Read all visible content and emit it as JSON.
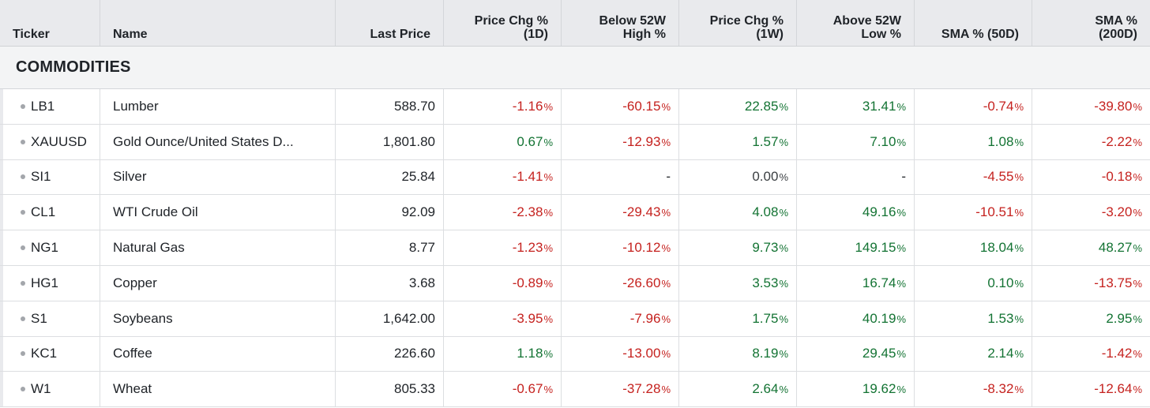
{
  "header": {
    "ticker": "Ticker",
    "name": "Name",
    "last_price": "Last Price",
    "chg_1d": "Price Chg %\n(1D)",
    "below_52w_high": "Below 52W\nHigh %",
    "chg_1w": "Price Chg %\n(1W)",
    "above_52w_low": "Above 52W\nLow %",
    "sma_50d": "SMA % (50D)",
    "sma_200d": "SMA %\n(200D)"
  },
  "section": {
    "title": "COMMODITIES"
  },
  "rows": [
    {
      "ticker": "LB1",
      "name": "Lumber",
      "price": "588.70",
      "chg_1d": {
        "v": "-1.16",
        "dir": "down"
      },
      "below_high": {
        "v": "-60.15",
        "dir": "down"
      },
      "chg_1w": {
        "v": "22.85",
        "dir": "up"
      },
      "above_low": {
        "v": "31.41",
        "dir": "up"
      },
      "sma50": {
        "v": "-0.74",
        "dir": "down"
      },
      "sma200": {
        "v": "-39.80",
        "dir": "down"
      }
    },
    {
      "ticker": "XAUUSD",
      "name": "Gold Ounce/United States D...",
      "price": "1,801.80",
      "chg_1d": {
        "v": "0.67",
        "dir": "up"
      },
      "below_high": {
        "v": "-12.93",
        "dir": "down"
      },
      "chg_1w": {
        "v": "1.57",
        "dir": "up"
      },
      "above_low": {
        "v": "7.10",
        "dir": "up"
      },
      "sma50": {
        "v": "1.08",
        "dir": "up"
      },
      "sma200": {
        "v": "-2.22",
        "dir": "down"
      }
    },
    {
      "ticker": "SI1",
      "name": "Silver",
      "price": "25.84",
      "chg_1d": {
        "v": "-1.41",
        "dir": "down"
      },
      "below_high": {
        "v": "-",
        "dir": "neutral"
      },
      "chg_1w": {
        "v": "0.00",
        "dir": "flat"
      },
      "above_low": {
        "v": "-",
        "dir": "neutral"
      },
      "sma50": {
        "v": "-4.55",
        "dir": "down"
      },
      "sma200": {
        "v": "-0.18",
        "dir": "down"
      }
    },
    {
      "ticker": "CL1",
      "name": "WTI Crude Oil",
      "price": "92.09",
      "chg_1d": {
        "v": "-2.38",
        "dir": "down"
      },
      "below_high": {
        "v": "-29.43",
        "dir": "down"
      },
      "chg_1w": {
        "v": "4.08",
        "dir": "up"
      },
      "above_low": {
        "v": "49.16",
        "dir": "up"
      },
      "sma50": {
        "v": "-10.51",
        "dir": "down"
      },
      "sma200": {
        "v": "-3.20",
        "dir": "down"
      }
    },
    {
      "ticker": "NG1",
      "name": "Natural Gas",
      "price": "8.77",
      "chg_1d": {
        "v": "-1.23",
        "dir": "down"
      },
      "below_high": {
        "v": "-10.12",
        "dir": "down"
      },
      "chg_1w": {
        "v": "9.73",
        "dir": "up"
      },
      "above_low": {
        "v": "149.15",
        "dir": "up"
      },
      "sma50": {
        "v": "18.04",
        "dir": "up"
      },
      "sma200": {
        "v": "48.27",
        "dir": "up"
      }
    },
    {
      "ticker": "HG1",
      "name": "Copper",
      "price": "3.68",
      "chg_1d": {
        "v": "-0.89",
        "dir": "down"
      },
      "below_high": {
        "v": "-26.60",
        "dir": "down"
      },
      "chg_1w": {
        "v": "3.53",
        "dir": "up"
      },
      "above_low": {
        "v": "16.74",
        "dir": "up"
      },
      "sma50": {
        "v": "0.10",
        "dir": "up"
      },
      "sma200": {
        "v": "-13.75",
        "dir": "down"
      }
    },
    {
      "ticker": "S1",
      "name": "Soybeans",
      "price": "1,642.00",
      "chg_1d": {
        "v": "-3.95",
        "dir": "down"
      },
      "below_high": {
        "v": "-7.96",
        "dir": "down"
      },
      "chg_1w": {
        "v": "1.75",
        "dir": "up"
      },
      "above_low": {
        "v": "40.19",
        "dir": "up"
      },
      "sma50": {
        "v": "1.53",
        "dir": "up"
      },
      "sma200": {
        "v": "2.95",
        "dir": "up"
      }
    },
    {
      "ticker": "KC1",
      "name": "Coffee",
      "price": "226.60",
      "chg_1d": {
        "v": "1.18",
        "dir": "up"
      },
      "below_high": {
        "v": "-13.00",
        "dir": "down"
      },
      "chg_1w": {
        "v": "8.19",
        "dir": "up"
      },
      "above_low": {
        "v": "29.45",
        "dir": "up"
      },
      "sma50": {
        "v": "2.14",
        "dir": "up"
      },
      "sma200": {
        "v": "-1.42",
        "dir": "down"
      }
    },
    {
      "ticker": "W1",
      "name": "Wheat",
      "price": "805.33",
      "chg_1d": {
        "v": "-0.67",
        "dir": "down"
      },
      "below_high": {
        "v": "-37.28",
        "dir": "down"
      },
      "chg_1w": {
        "v": "2.64",
        "dir": "up"
      },
      "above_low": {
        "v": "19.62",
        "dir": "up"
      },
      "sma50": {
        "v": "-8.32",
        "dir": "down"
      },
      "sma200": {
        "v": "-12.64",
        "dir": "down"
      }
    }
  ],
  "pct_suffix": "%",
  "colors": {
    "up": "#137333",
    "down": "#c5221f",
    "header_bg": "#e9eaed",
    "section_bg": "#f3f4f5"
  },
  "icons": {
    "row_bullet": "dot-icon"
  }
}
